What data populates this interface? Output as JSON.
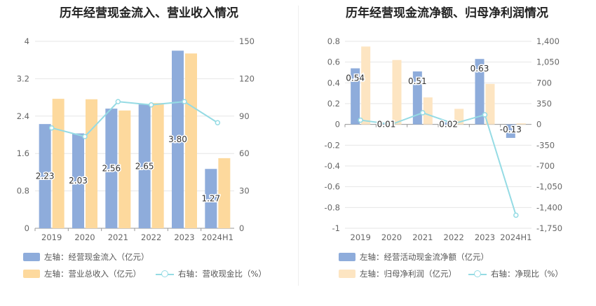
{
  "charts": [
    {
      "title": "历年经营现金流入、营业收入情况",
      "legend": [
        {
          "label": "左轴：经营现金流入（亿元）",
          "color": "#8eacdb",
          "kind": "bar"
        },
        {
          "label": "左轴：营业总收入（亿元）",
          "color": "#fdd99d",
          "kind": "bar"
        },
        {
          "label": "右轴：营收现金比（%）",
          "color": "#95dbe4",
          "kind": "line"
        }
      ]
    },
    {
      "title": "历年经营现金流净额、归母净利润情况",
      "legend": [
        {
          "label": "左轴：经营活动现金流净额（亿元）",
          "color": "#8eacdb",
          "kind": "bar"
        },
        {
          "label": "左轴：归母净利润（亿元）",
          "color": "#fde5c2",
          "kind": "bar"
        },
        {
          "label": "右轴：净现比（%）",
          "color": "#95dbe4",
          "kind": "line"
        }
      ]
    }
  ],
  "chart_data": [
    {
      "type": "bar",
      "title": "历年经营现金流入、营业收入情况",
      "categories": [
        "2019",
        "2020",
        "2021",
        "2022",
        "2023",
        "2024H1"
      ],
      "left_axis": {
        "ylim": [
          0,
          4
        ],
        "ticks": [
          "0",
          "0.8",
          "1.6",
          "2.4",
          "3.2",
          "4"
        ]
      },
      "right_axis": {
        "ylim": [
          0,
          150
        ],
        "ticks": [
          "0",
          "30",
          "60",
          "90",
          "120",
          "150"
        ]
      },
      "series": [
        {
          "name": "左轴：经营现金流入（亿元）",
          "axis": "left",
          "kind": "bar",
          "color": "#8eacdb",
          "values": [
            2.23,
            2.03,
            2.56,
            2.65,
            3.8,
            1.27
          ],
          "labels": [
            "2.23",
            "2.03",
            "2.56",
            "2.65",
            "3.80",
            "1.27"
          ]
        },
        {
          "name": "左轴：营业总收入（亿元）",
          "axis": "left",
          "kind": "bar",
          "color": "#fdd99d",
          "values": [
            2.77,
            2.76,
            2.52,
            2.68,
            3.74,
            1.5
          ]
        },
        {
          "name": "右轴：营收现金比（%）",
          "axis": "right",
          "kind": "line",
          "color": "#95dbe4",
          "values": [
            80.5,
            73.6,
            101.6,
            99.0,
            101.6,
            84.7
          ]
        }
      ],
      "grid": true
    },
    {
      "type": "bar",
      "title": "历年经营现金流净额、归母净利润情况",
      "categories": [
        "2019",
        "2020",
        "2021",
        "2022",
        "2023",
        "2024H1"
      ],
      "left_axis": {
        "ylim": [
          -1,
          0.8
        ],
        "ticks": [
          "-1",
          "-0.8",
          "-0.6",
          "-0.4",
          "-0.2",
          "0",
          "0.2",
          "0.4",
          "0.6",
          "0.8"
        ]
      },
      "right_axis": {
        "ylim": [
          -1750,
          1400
        ],
        "ticks": [
          "-1,750",
          "-1,400",
          "-1,050",
          "-700",
          "-350",
          "0",
          "350",
          "700",
          "1,050",
          "1,400"
        ]
      },
      "series": [
        {
          "name": "左轴：经营活动现金流净额（亿元）",
          "axis": "left",
          "kind": "bar",
          "color": "#8eacdb",
          "values": [
            0.54,
            0.01,
            0.51,
            0.02,
            0.63,
            -0.13
          ],
          "labels": [
            "0.54",
            "0.01",
            "0.51",
            "0.02",
            "0.63",
            "-0.13"
          ]
        },
        {
          "name": "左轴：归母净利润（亿元）",
          "axis": "left",
          "kind": "bar",
          "color": "#fde5c2",
          "values": [
            0.75,
            0.62,
            0.26,
            0.15,
            0.39,
            0.01
          ]
        },
        {
          "name": "右轴：净现比（%）",
          "axis": "right",
          "kind": "line",
          "color": "#95dbe4",
          "values": [
            72,
            1.6,
            196,
            13,
            162,
            -1530
          ]
        }
      ],
      "grid": true
    }
  ]
}
